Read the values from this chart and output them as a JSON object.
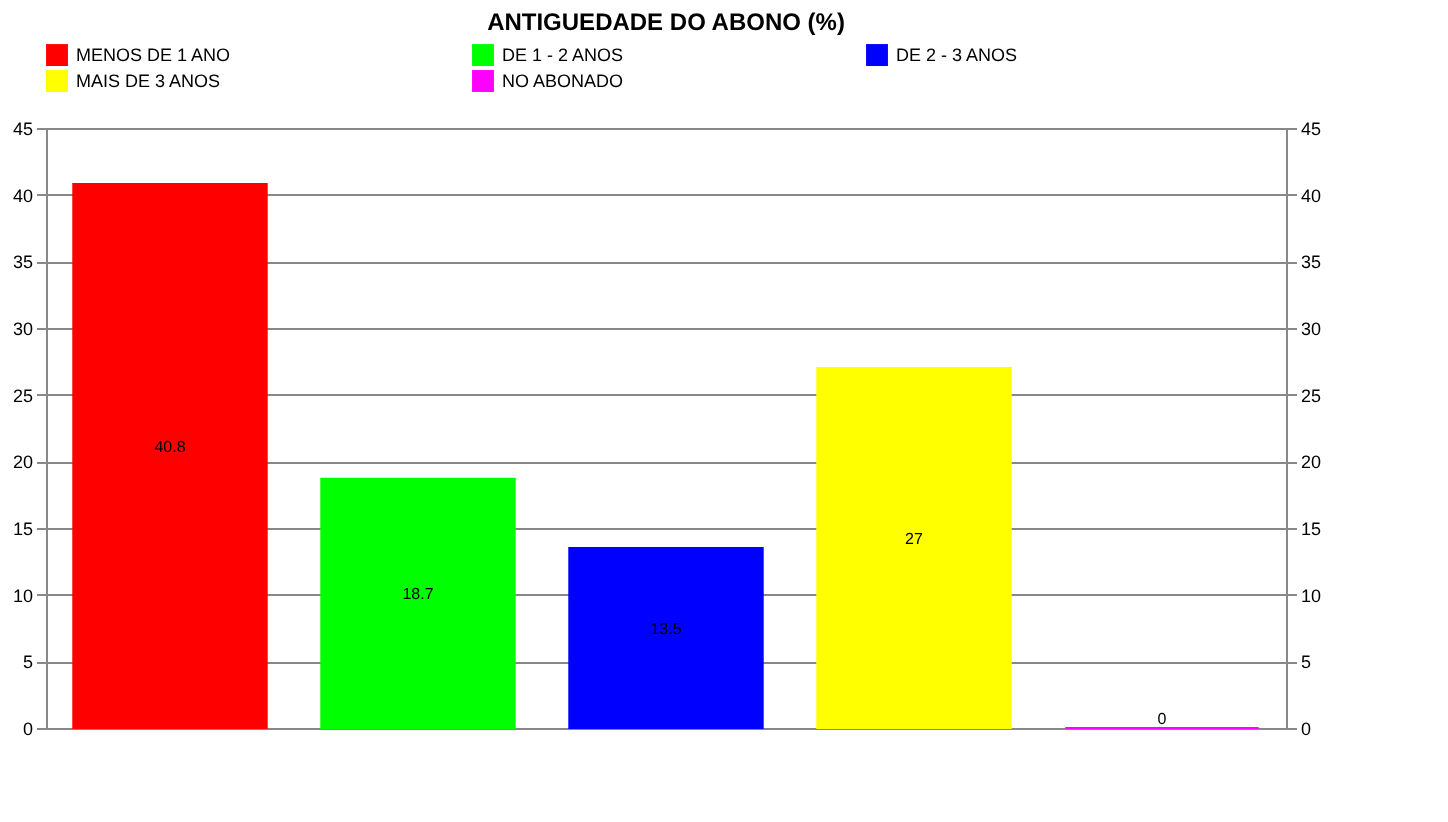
{
  "chart_data": {
    "type": "bar",
    "title": "ANTIGUEDADE DO ABONO (%)",
    "categories": [
      null,
      null,
      null,
      null,
      null
    ],
    "series": [
      {
        "name": "MENOS DE 1 ANO",
        "color": "#ff0000",
        "values": [
          40.8,
          null,
          null,
          null,
          null
        ]
      },
      {
        "name": "DE 1 - 2 ANOS",
        "color": "#00ff00",
        "values": [
          null,
          18.7,
          null,
          null,
          null
        ]
      },
      {
        "name": "DE 2 - 3 ANOS",
        "color": "#0000ff",
        "values": [
          null,
          null,
          13.5,
          null,
          null
        ]
      },
      {
        "name": "MAIS DE 3 ANOS",
        "color": "#ffff00",
        "values": [
          null,
          null,
          null,
          27,
          null
        ]
      },
      {
        "name": "NO ABONADO",
        "color": "#ff00ff",
        "values": [
          null,
          null,
          null,
          null,
          0
        ]
      }
    ],
    "ylim": [
      0,
      45
    ],
    "yticks": [
      0,
      5,
      10,
      15,
      20,
      25,
      30,
      35,
      40,
      45
    ],
    "y2lim": [
      0,
      45
    ],
    "y2ticks": [
      0,
      5,
      10,
      15,
      20,
      25,
      30,
      35,
      40,
      45
    ],
    "grid": "y",
    "legend": "top",
    "data_labels": true
  }
}
